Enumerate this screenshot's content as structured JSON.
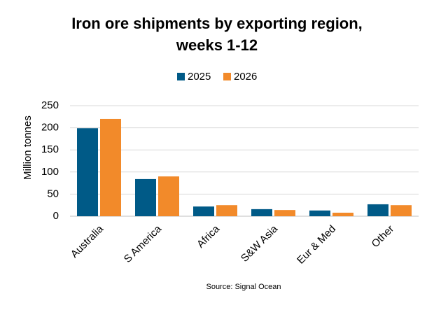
{
  "chart_data": {
    "type": "bar",
    "title": "Iron ore shipments by exporting region, weeks 1-12",
    "y_label": "Million tonnes",
    "source": "Source: Signal Ocean",
    "categories": [
      "Australia",
      "S America",
      "Africa",
      "S&W Asia",
      "Eur & Med",
      "Other"
    ],
    "series": [
      {
        "name": "2025",
        "color": "#005a87",
        "values": [
          199,
          84,
          22,
          16,
          13,
          27
        ]
      },
      {
        "name": "2026",
        "color": "#f28a2a",
        "values": [
          220,
          90,
          25,
          14,
          8,
          25
        ]
      }
    ],
    "ylim": [
      0,
      250
    ],
    "yticks": [
      0,
      50,
      100,
      150,
      200,
      250
    ],
    "grid": true,
    "legend": "top"
  }
}
